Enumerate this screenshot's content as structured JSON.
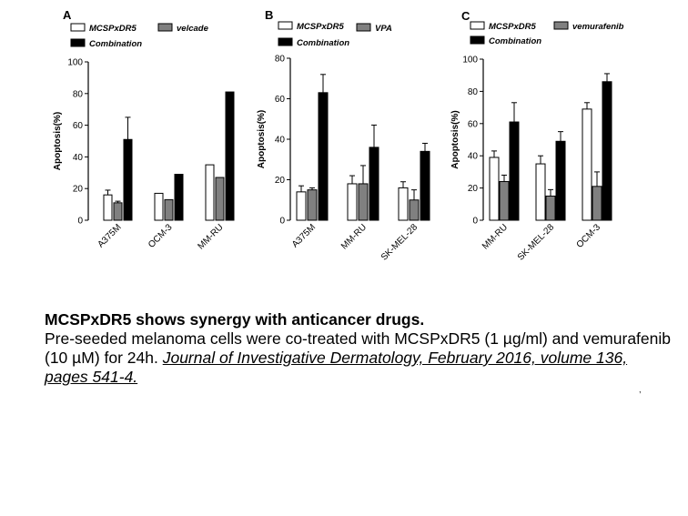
{
  "chart_data": [
    {
      "type": "bar",
      "panel": "A",
      "ylabel": "Apoptosis(%)",
      "ylim": [
        0,
        100
      ],
      "yticks": [
        0,
        20,
        40,
        60,
        80,
        100
      ],
      "categories": [
        "A375M",
        "OCM-3",
        "MM-RU"
      ],
      "series": [
        {
          "name": "MCSPxDR5",
          "values": [
            16,
            17,
            35
          ],
          "errors": [
            3,
            0,
            0
          ],
          "color": "#ffffff"
        },
        {
          "name": "velcade",
          "values": [
            11,
            13,
            27
          ],
          "errors": [
            1,
            0,
            0
          ],
          "color": "#808080"
        },
        {
          "name": "Combination",
          "values": [
            51,
            29,
            81
          ],
          "errors": [
            14,
            0,
            0
          ],
          "color": "#000000"
        }
      ]
    },
    {
      "type": "bar",
      "panel": "B",
      "ylabel": "Apoptosis(%)",
      "ylim": [
        0,
        80
      ],
      "yticks": [
        0,
        20,
        40,
        60,
        80
      ],
      "categories": [
        "A375M",
        "MM-RU",
        "SK-MEL-28"
      ],
      "series": [
        {
          "name": "MCSPxDR5",
          "values": [
            14,
            18,
            16
          ],
          "errors": [
            3,
            4,
            3
          ],
          "color": "#ffffff"
        },
        {
          "name": "VPA",
          "values": [
            15,
            18,
            10
          ],
          "errors": [
            1,
            9,
            5
          ],
          "color": "#808080"
        },
        {
          "name": "Combination",
          "values": [
            63,
            36,
            34
          ],
          "errors": [
            9,
            11,
            4
          ],
          "color": "#000000"
        }
      ]
    },
    {
      "type": "bar",
      "panel": "C",
      "ylabel": "Apoptosis(%)",
      "ylim": [
        0,
        100
      ],
      "yticks": [
        0,
        20,
        40,
        60,
        80,
        100
      ],
      "categories": [
        "MM-RU",
        "SK-MEL-28",
        "OCM-3"
      ],
      "series": [
        {
          "name": "MCSPxDR5",
          "values": [
            39,
            35,
            69
          ],
          "errors": [
            4,
            5,
            4
          ],
          "color": "#ffffff"
        },
        {
          "name": "vemurafenib",
          "values": [
            24,
            15,
            21
          ],
          "errors": [
            4,
            4,
            9
          ],
          "color": "#808080"
        },
        {
          "name": "Combination",
          "values": [
            61,
            49,
            86
          ],
          "errors": [
            12,
            6,
            5
          ],
          "color": "#000000"
        }
      ]
    }
  ],
  "caption": {
    "title": "MCSPxDR5 shows synergy with anticancer drugs.",
    "body": "Pre-seeded melanoma cells were co-treated with MCSPxDR5 (1 µg/ml) and vemurafenib (10 µM) for 24h. ",
    "reference": "Journal of Investigative Dermatology, February 2016, volume 136, pages 541-4."
  },
  "stray_mark": ","
}
